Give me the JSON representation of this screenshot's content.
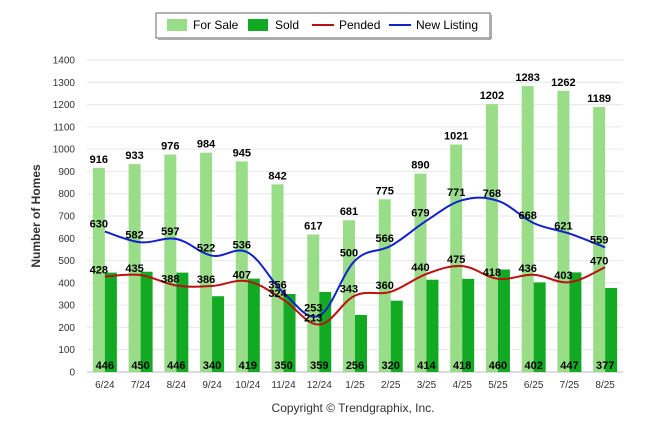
{
  "chart_data": {
    "type": "bar",
    "categories": [
      "6/24",
      "7/24",
      "8/24",
      "9/24",
      "10/24",
      "11/24",
      "12/24",
      "1/25",
      "2/25",
      "3/25",
      "4/25",
      "5/25",
      "6/25",
      "7/25",
      "8/25"
    ],
    "series": [
      {
        "name": "For Sale",
        "kind": "bar",
        "color": "#99dd88",
        "values": [
          916,
          933,
          976,
          984,
          945,
          842,
          617,
          681,
          775,
          890,
          1021,
          1202,
          1283,
          1262,
          1189
        ]
      },
      {
        "name": "Sold",
        "kind": "bar",
        "color": "#11aa22",
        "values": [
          446,
          450,
          446,
          340,
          419,
          350,
          359,
          256,
          320,
          414,
          418,
          460,
          402,
          447,
          377
        ]
      },
      {
        "name": "Pended",
        "kind": "line",
        "color": "#bb1111",
        "values": [
          428,
          435,
          388,
          386,
          407,
          324,
          213,
          343,
          360,
          440,
          475,
          418,
          436,
          403,
          470
        ]
      },
      {
        "name": "New Listing",
        "kind": "line",
        "color": "#1122cc",
        "values": [
          630,
          582,
          597,
          522,
          536,
          356,
          253,
          500,
          566,
          679,
          771,
          768,
          668,
          621,
          559
        ]
      }
    ],
    "ylabel": "Number of Homes",
    "ylim": [
      0,
      1400
    ],
    "yticks": [
      0,
      100,
      200,
      300,
      400,
      500,
      600,
      700,
      800,
      900,
      1000,
      1100,
      1200,
      1300,
      1400
    ],
    "grid": true,
    "legend_position": "top-center"
  },
  "footer": {
    "copyright": "Copyright © Trendgraphix, Inc."
  }
}
